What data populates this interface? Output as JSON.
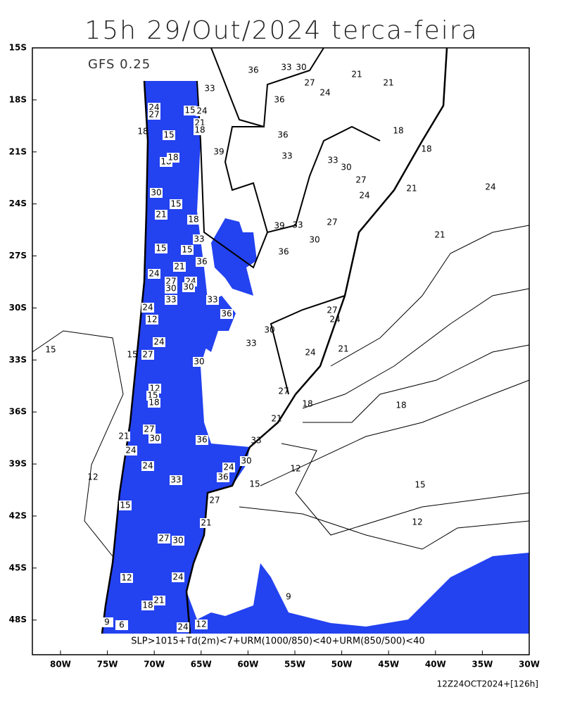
{
  "title": "15h 29/Out/2024 terca-feira",
  "model_label": "GFS 0.25",
  "xlim": [
    -83,
    -30
  ],
  "ylim": [
    -50,
    -15
  ],
  "yticks": [
    {
      "value": -15,
      "label": "15S"
    },
    {
      "value": -18,
      "label": "18S"
    },
    {
      "value": -21,
      "label": "21S"
    },
    {
      "value": -24,
      "label": "24S"
    },
    {
      "value": -27,
      "label": "27S"
    },
    {
      "value": -30,
      "label": "30S"
    },
    {
      "value": -33,
      "label": "33S"
    },
    {
      "value": -36,
      "label": "36S"
    },
    {
      "value": -39,
      "label": "39S"
    },
    {
      "value": -42,
      "label": "42S"
    },
    {
      "value": -45,
      "label": "45S"
    },
    {
      "value": -48,
      "label": "48S"
    }
  ],
  "xticks": [
    {
      "value": -80,
      "label": "80W"
    },
    {
      "value": -75,
      "label": "75W"
    },
    {
      "value": -70,
      "label": "70W"
    },
    {
      "value": -65,
      "label": "65W"
    },
    {
      "value": -60,
      "label": "60W"
    },
    {
      "value": -55,
      "label": "55W"
    },
    {
      "value": -50,
      "label": "50W"
    },
    {
      "value": -45,
      "label": "45W"
    },
    {
      "value": -40,
      "label": "40W"
    },
    {
      "value": -35,
      "label": "35W"
    },
    {
      "value": -30,
      "label": "30W"
    }
  ],
  "contour_labels": [
    33,
    36,
    33,
    30,
    21,
    21,
    27,
    24,
    36,
    18,
    18,
    36,
    33,
    33,
    30,
    27,
    24,
    21,
    24,
    39,
    33,
    27,
    30,
    36,
    21,
    27,
    24,
    21,
    30,
    24,
    33,
    27,
    18,
    18,
    21,
    33,
    12,
    15,
    15,
    12,
    9,
    15,
    12,
    18,
    15
  ],
  "boxed_contour_labels": [
    24,
    27,
    15,
    24,
    21,
    18,
    15,
    18,
    18,
    39,
    30,
    15,
    21,
    18,
    33,
    15,
    15,
    21,
    36,
    24,
    27,
    30,
    24,
    30,
    33,
    33,
    24,
    36,
    12,
    24,
    27,
    30,
    12,
    15,
    18,
    27,
    30,
    21,
    24,
    36,
    24,
    24,
    30,
    36,
    33,
    27,
    15,
    21,
    27,
    30,
    24,
    12,
    21,
    18,
    9,
    6,
    24,
    12
  ],
  "criteria": "SLP>1015+Td(2m)<7+URM(1000/850)<40+URM(850/500)<40",
  "footer": "12Z24OCT2024+[126h]"
}
